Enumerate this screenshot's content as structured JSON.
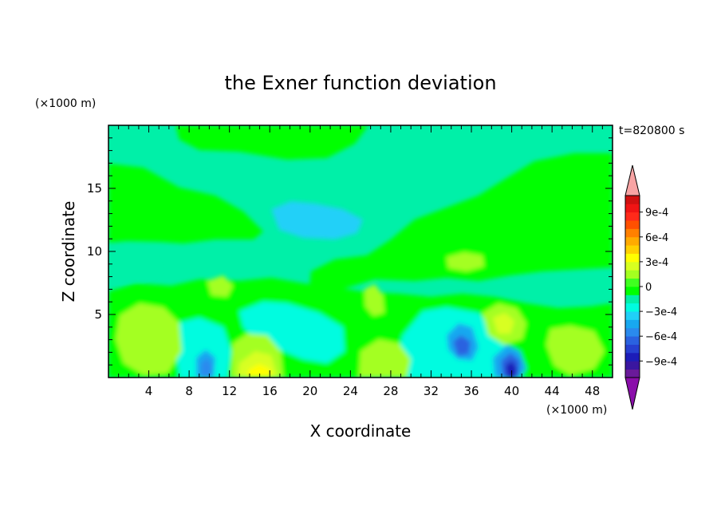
{
  "chart_data": {
    "type": "heatmap",
    "title": "the Exner function deviation",
    "xlabel": "X coordinate",
    "ylabel": "Z coordinate",
    "x_unit": "(×1000 m)",
    "y_unit": "(×1000 m)",
    "time_label": "t=820800 s",
    "xlim": [
      0,
      50
    ],
    "ylim": [
      0,
      20
    ],
    "x_ticks": [
      4,
      8,
      12,
      16,
      20,
      24,
      28,
      32,
      36,
      40,
      44,
      48
    ],
    "y_ticks": [
      5,
      10,
      15
    ],
    "colorbar": {
      "min": -0.0011,
      "max": 0.0011,
      "step": 0.0001,
      "labels": [
        "9e-4",
        "6e-4",
        "3e-4",
        "0",
        "−3e-4",
        "−6e-4",
        "−9e-4"
      ],
      "label_values": [
        0.0009,
        0.0006,
        0.0003,
        0,
        -0.0003,
        -0.0006,
        -0.0009
      ],
      "colors": [
        "#6a1a9a",
        "#3a16a0",
        "#1c1cb8",
        "#2640d0",
        "#2a62e0",
        "#2a8aee",
        "#18a8f0",
        "#20d0f8",
        "#00fce0",
        "#00f0a8",
        "#00ff00",
        "#40ff20",
        "#a4ff20",
        "#d8ff20",
        "#ffff00",
        "#ffd000",
        "#ffaa00",
        "#ff8000",
        "#ff5000",
        "#ff2a1a",
        "#f01414",
        "#d01010"
      ],
      "under_color": "#8a0eaa",
      "over_color": "#f8a4a4"
    }
  }
}
